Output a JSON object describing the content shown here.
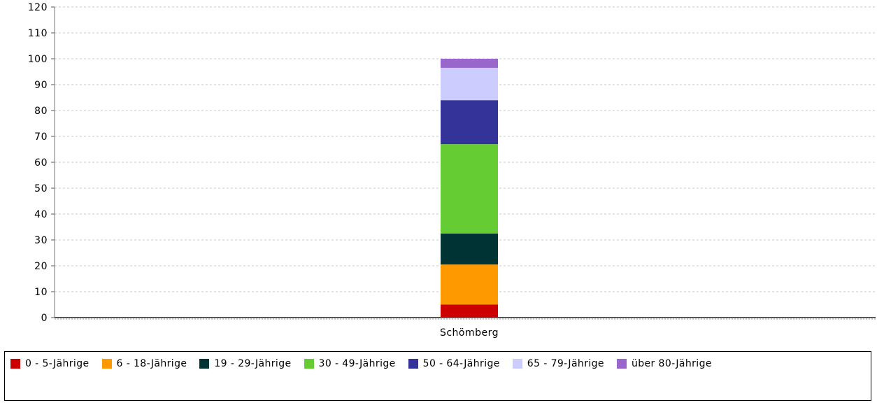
{
  "chart_data": {
    "type": "bar",
    "stacked": true,
    "categories": [
      "Schömberg"
    ],
    "y_ticks": [
      "0",
      "10",
      "20",
      "30",
      "40",
      "50",
      "60",
      "70",
      "80",
      "90",
      "100",
      "110",
      "120"
    ],
    "ylim": [
      0,
      120
    ],
    "grid": true,
    "legend_placement": "bottom",
    "series": [
      {
        "name": "0 - 5-Jährige",
        "values": [
          5
        ],
        "color": "#cc0000"
      },
      {
        "name": "6 - 18-Jährige",
        "values": [
          15.5
        ],
        "color": "#ff9900"
      },
      {
        "name": "19 - 29-Jährige",
        "values": [
          12
        ],
        "color": "#003333"
      },
      {
        "name": "30 - 49-Jährige",
        "values": [
          34.5
        ],
        "color": "#66cc33"
      },
      {
        "name": "50 - 64-Jährige",
        "values": [
          17
        ],
        "color": "#333399"
      },
      {
        "name": "65 - 79-Jährige",
        "values": [
          12.5
        ],
        "color": "#ccccff"
      },
      {
        "name": "über 80-Jährige",
        "values": [
          3.5
        ],
        "color": "#9966cc"
      }
    ]
  }
}
